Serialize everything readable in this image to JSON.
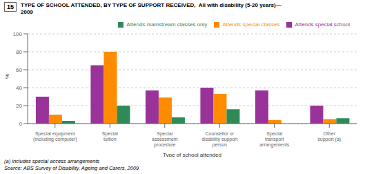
{
  "chart_data": {
    "type": "bar",
    "title": "TYPE OF SCHOOL ATTENDED, BY TYPE OF SUPPORT RECEIVED,  All with disability (5-20 years)—",
    "subtitle": "2009",
    "annotations": [
      "15",
      "(a) includes special access arrangements",
      "Source: ABS Survey of Disability, Ageing and Carers, 2009"
    ],
    "categories": [
      "Special equipment\n(including computer)",
      "Special\ntuition",
      "Special\nassessment\nprocedure",
      "Counsellor or\ndisability support\nperson",
      "Special\ntransport\narrangements",
      "Other\nsupport (a)"
    ],
    "xlabel": "Type of school attended",
    "ylabel": "%",
    "series": [
      {
        "name": "Attends special school",
        "color": "#993399",
        "values": [
          30,
          65,
          37,
          40,
          37,
          20
        ]
      },
      {
        "name": "Attends special classes",
        "color": "#ff8c00",
        "values": [
          10,
          80,
          29,
          33,
          4,
          5
        ]
      },
      {
        "name": "Attends mainstream classes only",
        "color": "#2e8b57",
        "values": [
          3,
          20,
          7,
          16,
          0,
          6
        ]
      }
    ],
    "ylim": [
      0,
      100
    ],
    "yticks": [
      0,
      20,
      40,
      60,
      80,
      100
    ],
    "grid": true,
    "legend": "upper right"
  }
}
